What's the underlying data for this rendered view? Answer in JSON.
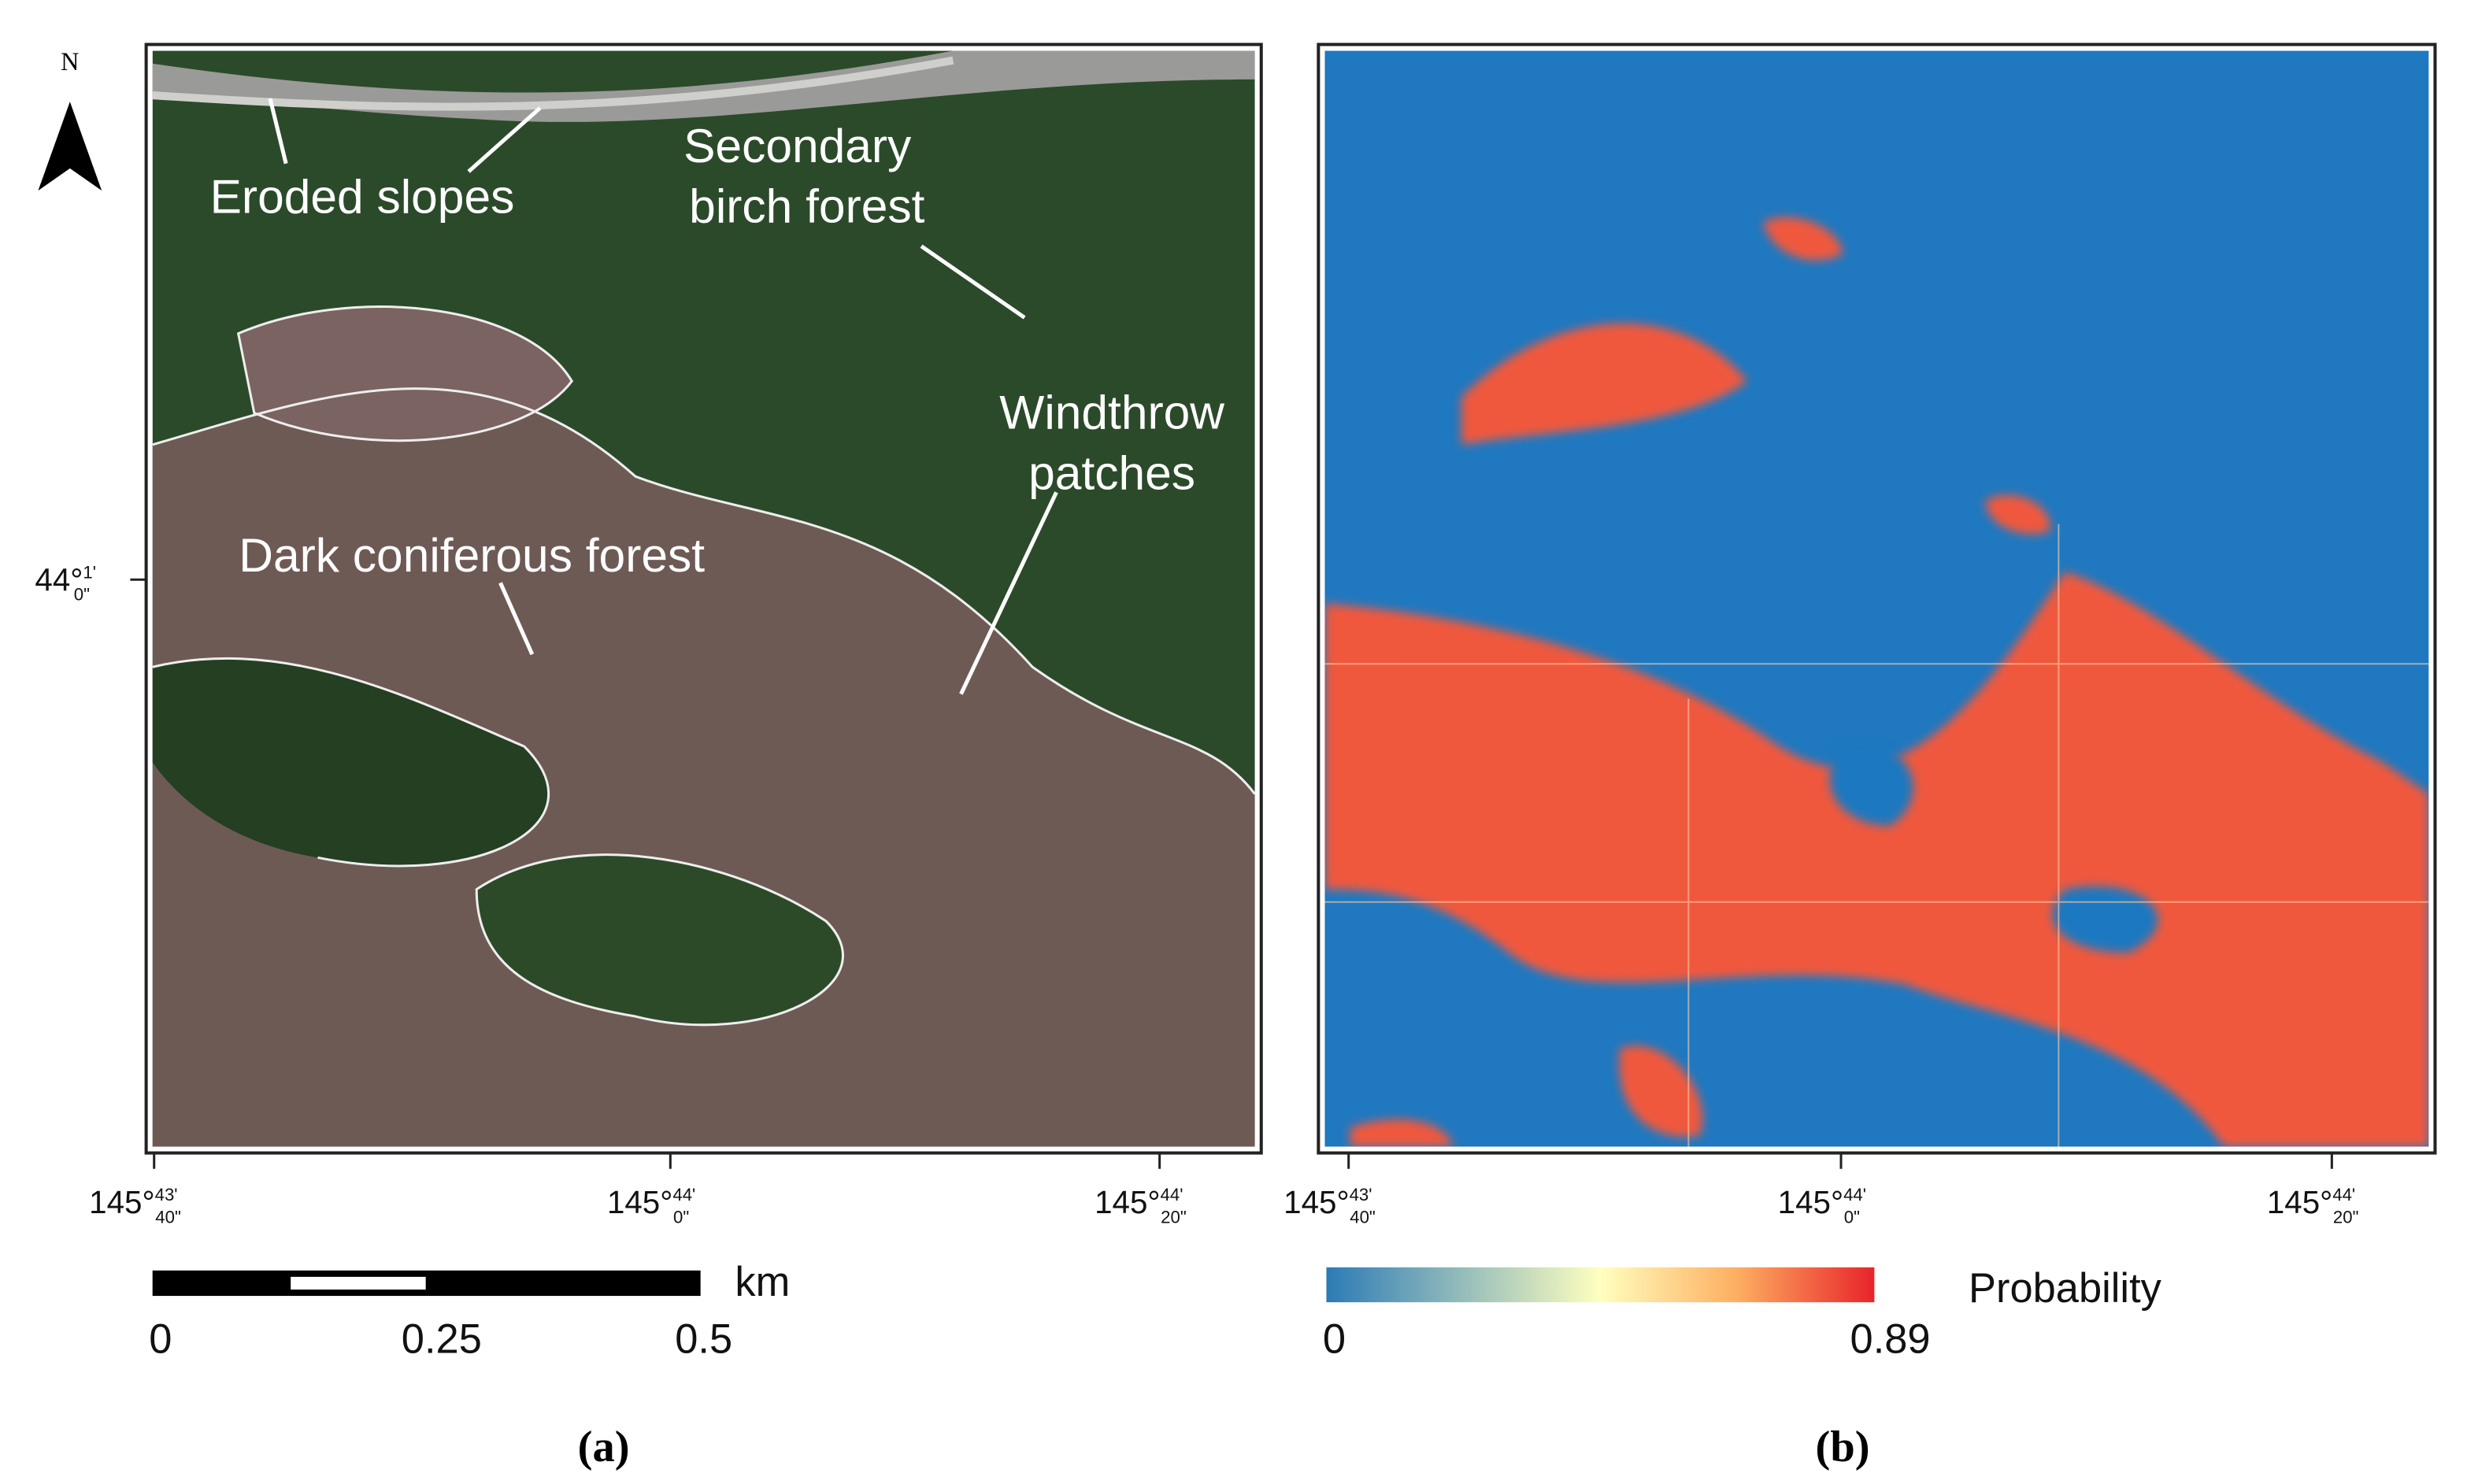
{
  "north_label": "N",
  "panel_a": {
    "label": "(a)",
    "annotations": [
      [
        "Eroded slopes"
      ],
      [
        "Secondary",
        "birch forest"
      ],
      [
        "Windthrow",
        "patches"
      ],
      [
        "Dark coniferous forest"
      ]
    ],
    "lon_ticks": [
      {
        "deg": "145°",
        "min": "43'",
        "sec": "40\""
      },
      {
        "deg": "145°",
        "min": "44'",
        "sec": "0\""
      },
      {
        "deg": "145°",
        "min": "44'",
        "sec": "20\""
      }
    ],
    "lat_ticks": [
      {
        "deg": "44°",
        "min": "1'",
        "sec": "0\""
      }
    ],
    "scale_bar": {
      "labels": [
        0,
        0.25,
        0.5
      ],
      "unit": "km"
    }
  },
  "panel_b": {
    "label": "(b)",
    "lon_ticks": [
      {
        "deg": "145°",
        "min": "43'",
        "sec": "40\""
      },
      {
        "deg": "145°",
        "min": "44'",
        "sec": "0\""
      },
      {
        "deg": "145°",
        "min": "44'",
        "sec": "20\""
      }
    ],
    "colorbar": {
      "title": "Probability",
      "min": 0,
      "max": 0.89
    }
  }
}
